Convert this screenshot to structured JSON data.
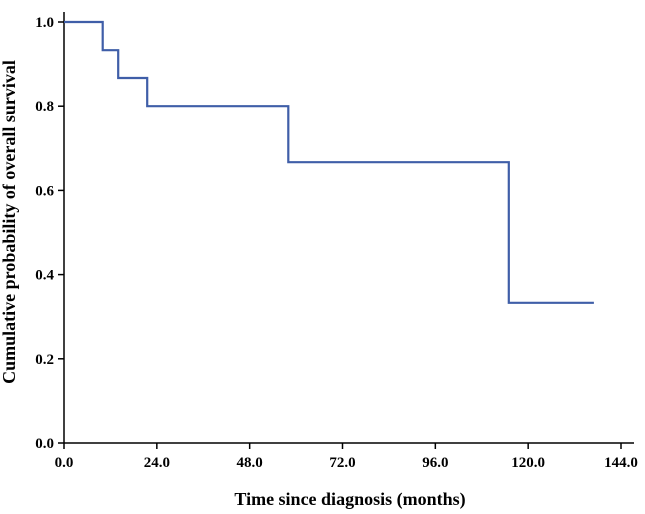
{
  "chart_data": {
    "type": "line",
    "subtype": "step",
    "title": "",
    "xlabel": "Time since diagnosis (months)",
    "ylabel": "Cumulative probability of overall survival",
    "xlim": [
      0,
      144
    ],
    "ylim": [
      0,
      1.0
    ],
    "x_ticks": [
      0,
      24,
      48,
      72,
      96,
      120,
      144
    ],
    "x_tick_labels": [
      "0.0",
      "24.0",
      "48.0",
      "72.0",
      "96.0",
      "120.0",
      "144.0"
    ],
    "y_ticks": [
      0,
      0.2,
      0.4,
      0.6,
      0.8,
      1.0
    ],
    "y_tick_labels": [
      "0.0",
      "0.2",
      "0.4",
      "0.6",
      "0.8",
      "1.0"
    ],
    "grid": false,
    "legend": "none",
    "series": [
      {
        "color": "#3f5ea8",
        "x": [
          0,
          10,
          10,
          14,
          14,
          21.5,
          21.5,
          58,
          58,
          115,
          115,
          137
        ],
        "y": [
          1.0,
          1.0,
          0.933,
          0.933,
          0.867,
          0.867,
          0.8,
          0.8,
          0.667,
          0.667,
          0.333,
          0.333
        ]
      }
    ]
  }
}
